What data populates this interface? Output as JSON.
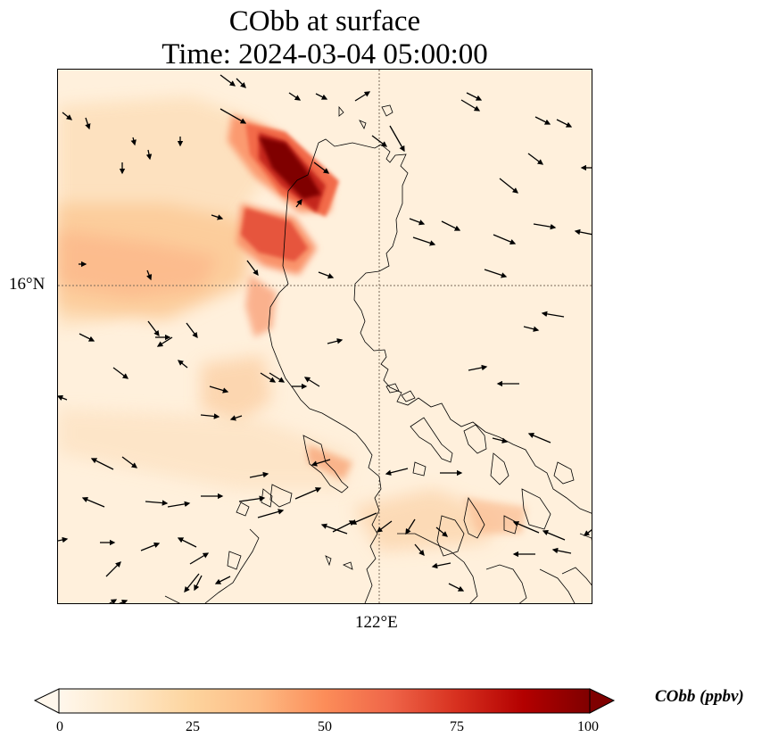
{
  "title": {
    "line1": "CObb at surface",
    "line2": "Time: 2024-03-04 05:00:00"
  },
  "map": {
    "lat_label": "16°N",
    "lon_label": "122°E",
    "gridline_color": "#7a6a5a",
    "coastline_color": "#000000",
    "wind_vector_color": "#000000"
  },
  "colorbar": {
    "label": "CObb (ppbv)",
    "ticks": [
      "0",
      "25",
      "50",
      "75",
      "100"
    ],
    "range": [
      0,
      100
    ],
    "colormap": "OrRd",
    "stops": [
      "#fff7ec",
      "#fee8c8",
      "#fdd49e",
      "#fdbb84",
      "#fc8d59",
      "#ef6548",
      "#d7301f",
      "#b30000",
      "#7f0000"
    ],
    "extend": "both"
  }
}
